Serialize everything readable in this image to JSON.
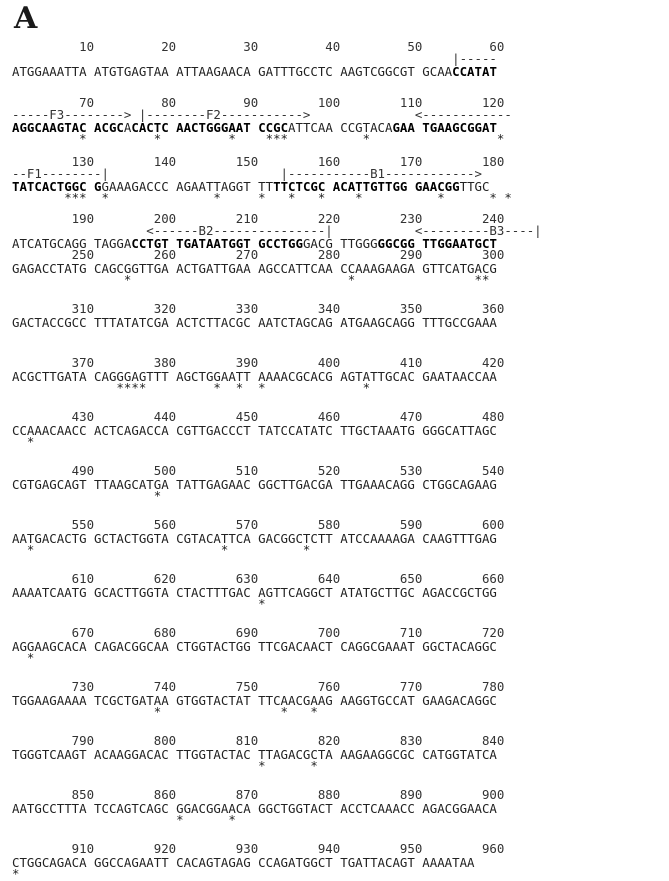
{
  "panel_label": "A",
  "rows": [
    {
      "nums": "         10         20         30         40         50         60",
      "ann": "                                                           |-----",
      "seq": [
        [
          "ATGGAAATTA ATGTGAGTAA ATTAAGAACA GATTTGCCTC AAGTCGGCGT GCAA",
          false
        ],
        [
          "CCATAT",
          true
        ]
      ],
      "stars": ""
    },
    {
      "nums": "         70         80         90        100        110        120",
      "ann": "-----F3--------> |--------F2----------->              <------------",
      "seq": [
        [
          "AGGCAAGTAC ACGC",
          true
        ],
        [
          "A",
          false
        ],
        [
          "CACTC AACTGGGAAT CCGC",
          true
        ],
        [
          "ATTCAA CCGTACA",
          false
        ],
        [
          "GAA TGAAGCGGAT",
          true
        ]
      ],
      "stars": "         *         *         *    ***          *                 *"
    },
    {
      "nums": "        130        140        150        160        170        180",
      "ann": "--F1--------|                       |-----------B1------------>",
      "seq": [
        [
          "TATCACTGGC G",
          true
        ],
        [
          "GAAAGACCC AGAATTAGGT TT",
          false
        ],
        [
          "TTCTCGC ACATTGTTGG GAACGG",
          true
        ],
        [
          "TTGC",
          false
        ]
      ],
      "stars": "       ***  *              *     *   *   *    *          *      * *"
    },
    {
      "nums": "        190        200        210        220        230        240",
      "ann": "                  <------B2---------------|           <---------B3----|",
      "seq": [
        [
          "ATCATGCAGG TAGGA",
          false
        ],
        [
          "CCTGT TGATAATGGT GCCTGG",
          true
        ],
        [
          "GACG TTGGG",
          false
        ],
        [
          "GGCGG TTGGAATGCT",
          true
        ]
      ],
      "stars": ""
    },
    {
      "nums": "        250        260        270        280        290        300",
      "ann": "",
      "seq": [
        [
          "GAGACCTATG CAGCGGTTGA ACTGATTGAA AGCCATTCAA CCAAAGAAGA GTTCATGACG",
          false
        ]
      ],
      "stars": "               *                             *                **"
    },
    {
      "nums": "        310        320        330        340        350        360",
      "ann": "",
      "seq": [
        [
          "GACTACCGCC TTTATATCGA ACTCTTACGC AATCTAGCAG ATGAAGCAGG TTTGCCGAAA",
          false
        ]
      ],
      "stars": ""
    },
    {
      "nums": "        370        380        390        400        410        420",
      "ann": "",
      "seq": [
        [
          "ACGCTTGATA CAGGGAGTTT AGCTGGAATT AAAACGCACG AGTATTGCAC GAATAACCAA",
          false
        ]
      ],
      "stars": "              ****         *  *  *             *"
    },
    {
      "nums": "        430        440        450        460        470        480",
      "ann": "",
      "seq": [
        [
          "CCAAACAACC ACTCAGACCA CGTTGACCCT TATCCATATC TTGCTAAATG GGGCATTAGC",
          false
        ]
      ],
      "stars": "  *"
    },
    {
      "nums": "        490        500        510        520        530        540",
      "ann": "",
      "seq": [
        [
          "CGTGAGCAGT TTAAGCATGA TATTGAGAAC GGCTTGACGA TTGAAACAGG CTGGCAGAAG",
          false
        ]
      ],
      "stars": "                   *"
    },
    {
      "nums": "        550        560        570        580        590        600",
      "ann": "",
      "seq": [
        [
          "AATGACACTG GCTACTGGTA CGTACATTCA GACGGCTCTT ATCCAAAAGA CAAGTTTGAG",
          false
        ]
      ],
      "stars": "  *                         *          *"
    },
    {
      "nums": "        610        620        630        640        650        660",
      "ann": "",
      "seq": [
        [
          "AAAATCAATG GCACTTGGTA CTACTTTGAC AGTTCAGGCT ATATGCTTGC AGACCGCTGG",
          false
        ]
      ],
      "stars": "                                 *"
    },
    {
      "nums": "        670        680        690        700        710        720",
      "ann": "",
      "seq": [
        [
          "AGGAAGCACA CAGACGGCAA CTGGTACTGG TTCGACAACT CAGGCGAAAT GGCTACAGGC",
          false
        ]
      ],
      "stars": "  *"
    },
    {
      "nums": "        730        740        750        760        770        780",
      "ann": "",
      "seq": [
        [
          "TGGAAGAAAA TCGCTGATAA GTGGTACTAT TTCAACGAAG AAGGTGCCAT GAAGACAGGC",
          false
        ]
      ],
      "stars": "                   *                *   *"
    },
    {
      "nums": "        790        800        810        820        830        840",
      "ann": "",
      "seq": [
        [
          "TGGGTCAAGT ACAAGGACAC TTGGTACTAC TTAGACGCTA AAGAAGGCGC CATGGTATCA",
          false
        ]
      ],
      "stars": "                                 *      *"
    },
    {
      "nums": "        850        860        870        880        890        900",
      "ann": "",
      "seq": [
        [
          "AATGCCTTTA TCCAGTCAGC GGACGGAACA GGCTGGTACT ACCTCAAACC AGACGGAACA",
          false
        ]
      ],
      "stars": "                      *      *"
    },
    {
      "nums": "        910        920        930        940        950        960",
      "ann": "",
      "seq": [
        [
          "CTGGCAGACA GGCCAGAATT CACAGTAGAG CCAGATGGCT TGATTACAGT AAAATAA",
          false
        ]
      ],
      "stars": "*"
    }
  ]
}
